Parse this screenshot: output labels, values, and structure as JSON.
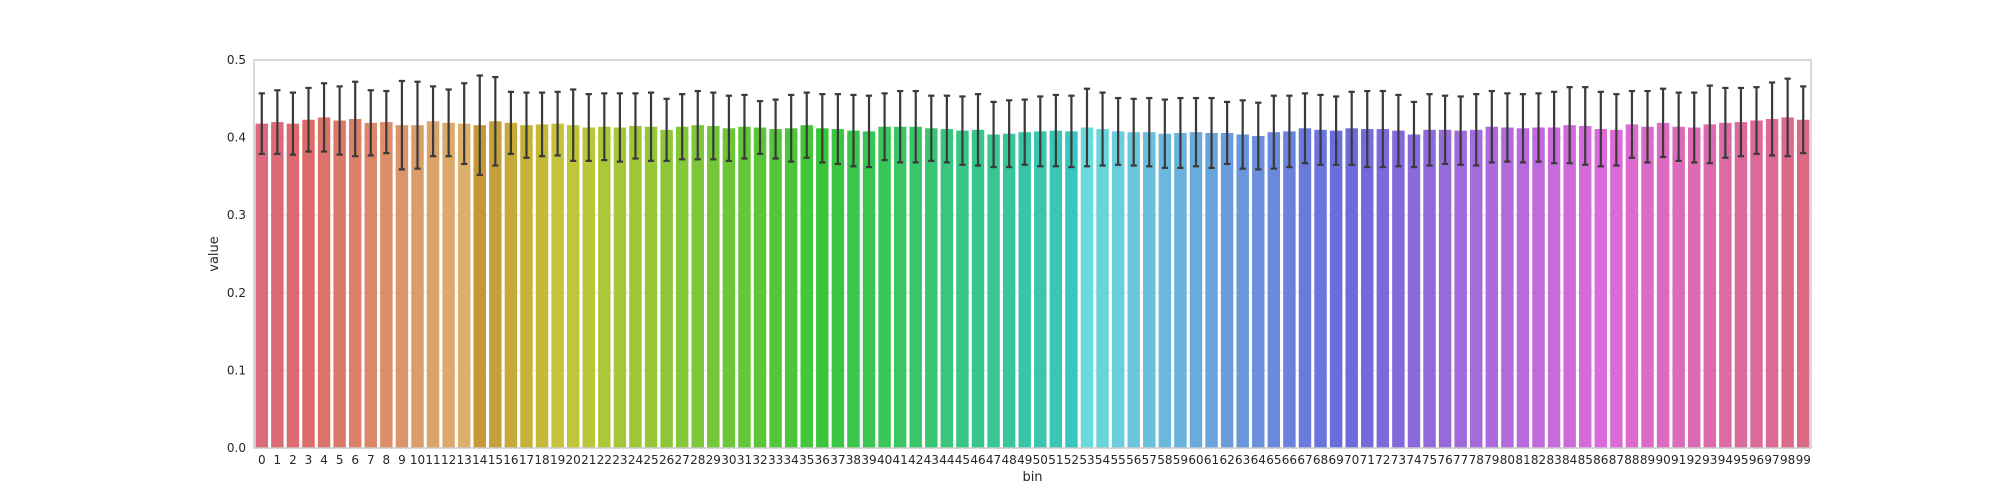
{
  "chart_data": {
    "type": "bar",
    "xlabel": "bin",
    "ylabel": "value",
    "ylim": [
      0,
      0.5
    ],
    "yticks": [
      0.0,
      0.1,
      0.2,
      0.3,
      0.4,
      0.5
    ],
    "ytick_labels": [
      "0.0",
      "0.1",
      "0.2",
      "0.3",
      "0.4",
      "0.5"
    ],
    "grid": true,
    "error_bars": true,
    "categories": [
      "0",
      "1",
      "2",
      "3",
      "4",
      "5",
      "6",
      "7",
      "8",
      "9",
      "10",
      "11",
      "12",
      "13",
      "14",
      "15",
      "16",
      "17",
      "18",
      "19",
      "20",
      "21",
      "22",
      "23",
      "24",
      "25",
      "26",
      "27",
      "28",
      "29",
      "30",
      "31",
      "32",
      "33",
      "34",
      "35",
      "36",
      "37",
      "38",
      "39",
      "40",
      "41",
      "42",
      "43",
      "44",
      "45",
      "46",
      "47",
      "48",
      "49",
      "50",
      "51",
      "52",
      "53",
      "54",
      "55",
      "56",
      "57",
      "58",
      "59",
      "60",
      "61",
      "62",
      "63",
      "64",
      "65",
      "66",
      "67",
      "68",
      "69",
      "70",
      "71",
      "72",
      "73",
      "74",
      "75",
      "76",
      "77",
      "78",
      "79",
      "80",
      "81",
      "82",
      "83",
      "84",
      "85",
      "86",
      "87",
      "88",
      "89",
      "90",
      "91",
      "92",
      "93",
      "94",
      "95",
      "96",
      "97",
      "98",
      "99"
    ],
    "values": [
      0.418,
      0.42,
      0.418,
      0.423,
      0.426,
      0.422,
      0.424,
      0.419,
      0.42,
      0.416,
      0.416,
      0.421,
      0.419,
      0.418,
      0.416,
      0.421,
      0.419,
      0.416,
      0.417,
      0.418,
      0.416,
      0.413,
      0.414,
      0.413,
      0.415,
      0.414,
      0.41,
      0.414,
      0.416,
      0.415,
      0.412,
      0.414,
      0.413,
      0.411,
      0.412,
      0.416,
      0.412,
      0.411,
      0.409,
      0.408,
      0.414,
      0.414,
      0.414,
      0.412,
      0.411,
      0.409,
      0.41,
      0.404,
      0.405,
      0.407,
      0.408,
      0.409,
      0.408,
      0.413,
      0.411,
      0.408,
      0.407,
      0.407,
      0.405,
      0.406,
      0.407,
      0.406,
      0.406,
      0.404,
      0.402,
      0.407,
      0.408,
      0.412,
      0.41,
      0.409,
      0.412,
      0.411,
      0.411,
      0.409,
      0.404,
      0.41,
      0.41,
      0.409,
      0.41,
      0.414,
      0.413,
      0.412,
      0.413,
      0.413,
      0.416,
      0.415,
      0.411,
      0.41,
      0.417,
      0.414,
      0.419,
      0.414,
      0.413,
      0.417,
      0.419,
      0.42,
      0.422,
      0.424,
      0.426,
      0.423
    ],
    "errors": [
      0.039,
      0.041,
      0.04,
      0.041,
      0.044,
      0.044,
      0.048,
      0.042,
      0.04,
      0.057,
      0.056,
      0.045,
      0.043,
      0.052,
      0.064,
      0.057,
      0.04,
      0.042,
      0.041,
      0.041,
      0.046,
      0.043,
      0.043,
      0.044,
      0.042,
      0.044,
      0.04,
      0.042,
      0.044,
      0.043,
      0.042,
      0.041,
      0.034,
      0.038,
      0.043,
      0.042,
      0.044,
      0.045,
      0.046,
      0.046,
      0.043,
      0.046,
      0.046,
      0.042,
      0.043,
      0.044,
      0.046,
      0.042,
      0.043,
      0.042,
      0.045,
      0.046,
      0.046,
      0.05,
      0.047,
      0.043,
      0.043,
      0.044,
      0.044,
      0.045,
      0.044,
      0.045,
      0.04,
      0.044,
      0.043,
      0.047,
      0.046,
      0.045,
      0.045,
      0.044,
      0.047,
      0.049,
      0.049,
      0.046,
      0.042,
      0.046,
      0.044,
      0.044,
      0.046,
      0.046,
      0.044,
      0.044,
      0.044,
      0.046,
      0.049,
      0.05,
      0.048,
      0.046,
      0.043,
      0.046,
      0.044,
      0.044,
      0.045,
      0.05,
      0.045,
      0.044,
      0.043,
      0.047,
      0.05,
      0.043
    ]
  }
}
